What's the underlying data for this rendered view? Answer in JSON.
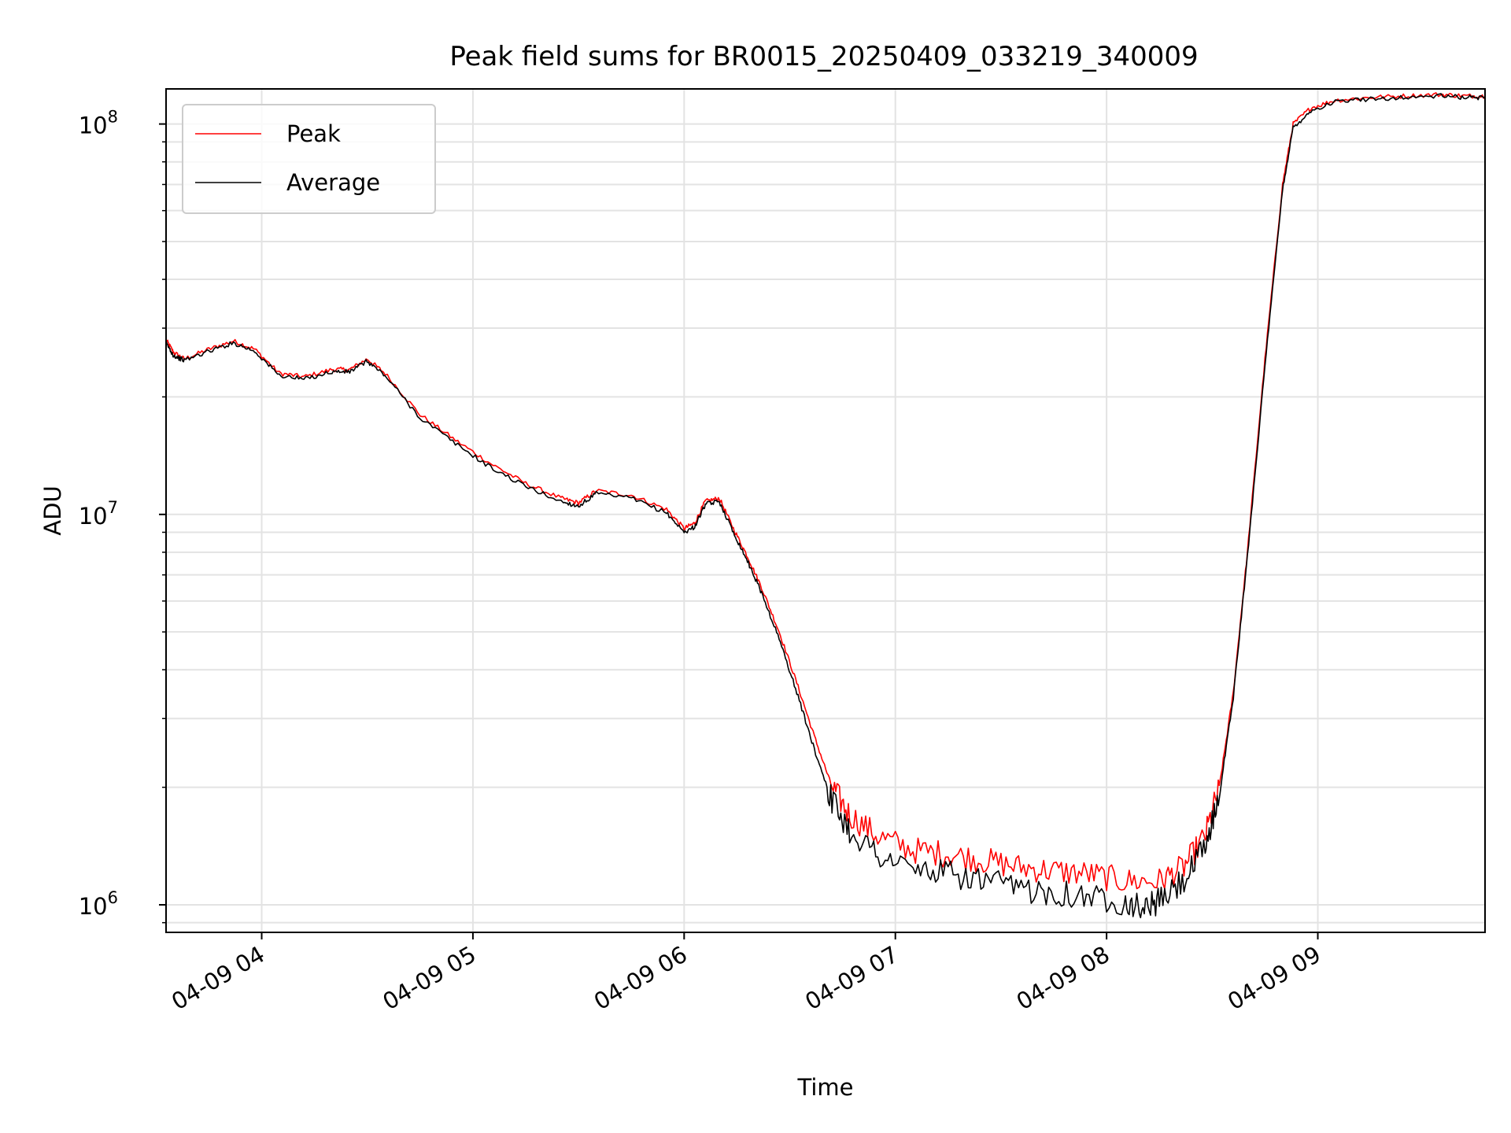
{
  "chart_data": {
    "type": "line",
    "title": "Peak field sums for BR0015_20250409_033219_340009",
    "xlabel": "Time",
    "ylabel": "ADU",
    "y_scale": "log",
    "ylim": [
      850000,
      123000000
    ],
    "xlim": [
      "2025-04-09 03:32:50",
      "2025-04-09 09:47:30"
    ],
    "x_ticks": [
      "2025-04-09 04:00",
      "2025-04-09 05:00",
      "2025-04-09 06:00",
      "2025-04-09 07:00",
      "2025-04-09 08:00",
      "2025-04-09 09:00"
    ],
    "x_tick_labels": [
      "04-09 04",
      "04-09 05",
      "04-09 06",
      "04-09 07",
      "04-09 08",
      "04-09 09"
    ],
    "y_ticks": [
      {
        "base": "10",
        "exp": "6",
        "value": 1000000
      },
      {
        "base": "10",
        "exp": "7",
        "value": 10000000
      },
      {
        "base": "10",
        "exp": "8",
        "value": 100000000
      }
    ],
    "grid": true,
    "legend_position": "upper-left",
    "series": [
      {
        "name": "Peak",
        "color": "#ff0000",
        "points": [
          [
            "2025-04-09 03:32:50",
            28000000
          ],
          [
            "2025-04-09 03:35:00",
            26000000
          ],
          [
            "2025-04-09 03:38:00",
            25000000
          ],
          [
            "2025-04-09 03:45:00",
            26500000
          ],
          [
            "2025-04-09 03:52:00",
            27800000
          ],
          [
            "2025-04-09 03:58:00",
            26500000
          ],
          [
            "2025-04-09 04:05:00",
            23000000
          ],
          [
            "2025-04-09 04:12:00",
            22500000
          ],
          [
            "2025-04-09 04:20:00",
            23500000
          ],
          [
            "2025-04-09 04:25:00",
            23500000
          ],
          [
            "2025-04-09 04:30:00",
            25000000
          ],
          [
            "2025-04-09 04:35:00",
            23000000
          ],
          [
            "2025-04-09 04:45:00",
            18000000
          ],
          [
            "2025-04-09 04:55:00",
            15500000
          ],
          [
            "2025-04-09 05:05:00",
            13500000
          ],
          [
            "2025-04-09 05:15:00",
            12000000
          ],
          [
            "2025-04-09 05:25:00",
            11000000
          ],
          [
            "2025-04-09 05:30:00",
            10700000
          ],
          [
            "2025-04-09 05:35:00",
            11500000
          ],
          [
            "2025-04-09 05:45:00",
            11200000
          ],
          [
            "2025-04-09 05:55:00",
            10300000
          ],
          [
            "2025-04-09 06:00:00",
            9200000
          ],
          [
            "2025-04-09 06:03:00",
            9500000
          ],
          [
            "2025-04-09 06:06:00",
            10800000
          ],
          [
            "2025-04-09 06:10:00",
            11000000
          ],
          [
            "2025-04-09 06:14:00",
            9200000
          ],
          [
            "2025-04-09 06:18:00",
            7800000
          ],
          [
            "2025-04-09 06:22:00",
            6500000
          ],
          [
            "2025-04-09 06:27:00",
            5000000
          ],
          [
            "2025-04-09 06:32:00",
            3700000
          ],
          [
            "2025-04-09 06:37:00",
            2700000
          ],
          [
            "2025-04-09 06:42:00",
            2000000
          ],
          [
            "2025-04-09 06:47:00",
            1700000
          ],
          [
            "2025-04-09 06:55:00",
            1500000
          ],
          [
            "2025-04-09 07:05:00",
            1380000
          ],
          [
            "2025-04-09 07:15:00",
            1350000
          ],
          [
            "2025-04-09 07:25:00",
            1300000
          ],
          [
            "2025-04-09 07:35:00",
            1250000
          ],
          [
            "2025-04-09 07:45:00",
            1220000
          ],
          [
            "2025-04-09 07:55:00",
            1200000
          ],
          [
            "2025-04-09 08:05:00",
            1150000
          ],
          [
            "2025-04-09 08:15:00",
            1150000
          ],
          [
            "2025-04-09 08:22:00",
            1250000
          ],
          [
            "2025-04-09 08:28:00",
            1500000
          ],
          [
            "2025-04-09 08:32:00",
            2000000
          ],
          [
            "2025-04-09 08:36:00",
            3500000
          ],
          [
            "2025-04-09 08:40:00",
            8000000
          ],
          [
            "2025-04-09 08:45:00",
            25000000
          ],
          [
            "2025-04-09 08:50:00",
            70000000
          ],
          [
            "2025-04-09 08:53:00",
            100000000
          ],
          [
            "2025-04-09 08:58:00",
            110000000
          ],
          [
            "2025-04-09 09:05:00",
            115000000
          ],
          [
            "2025-04-09 09:15:00",
            117000000
          ],
          [
            "2025-04-09 09:25:00",
            118000000
          ],
          [
            "2025-04-09 09:35:00",
            119000000
          ],
          [
            "2025-04-09 09:42:00",
            118000000
          ],
          [
            "2025-04-09 09:47:30",
            118000000
          ]
        ]
      },
      {
        "name": "Average",
        "color": "#000000",
        "points": [
          [
            "2025-04-09 03:32:50",
            27500000
          ],
          [
            "2025-04-09 03:35:00",
            25500000
          ],
          [
            "2025-04-09 03:38:00",
            24800000
          ],
          [
            "2025-04-09 03:45:00",
            26200000
          ],
          [
            "2025-04-09 03:52:00",
            27500000
          ],
          [
            "2025-04-09 03:58:00",
            26200000
          ],
          [
            "2025-04-09 04:05:00",
            22700000
          ],
          [
            "2025-04-09 04:12:00",
            22200000
          ],
          [
            "2025-04-09 04:20:00",
            23200000
          ],
          [
            "2025-04-09 04:25:00",
            23200000
          ],
          [
            "2025-04-09 04:30:00",
            24700000
          ],
          [
            "2025-04-09 04:35:00",
            22700000
          ],
          [
            "2025-04-09 04:45:00",
            17700000
          ],
          [
            "2025-04-09 04:55:00",
            15200000
          ],
          [
            "2025-04-09 05:05:00",
            13200000
          ],
          [
            "2025-04-09 05:15:00",
            11800000
          ],
          [
            "2025-04-09 05:25:00",
            10800000
          ],
          [
            "2025-04-09 05:30:00",
            10500000
          ],
          [
            "2025-04-09 05:35:00",
            11300000
          ],
          [
            "2025-04-09 05:45:00",
            11000000
          ],
          [
            "2025-04-09 05:55:00",
            10100000
          ],
          [
            "2025-04-09 06:00:00",
            9000000
          ],
          [
            "2025-04-09 06:03:00",
            9300000
          ],
          [
            "2025-04-09 06:06:00",
            10600000
          ],
          [
            "2025-04-09 06:10:00",
            10800000
          ],
          [
            "2025-04-09 06:14:00",
            9000000
          ],
          [
            "2025-04-09 06:18:00",
            7600000
          ],
          [
            "2025-04-09 06:22:00",
            6300000
          ],
          [
            "2025-04-09 06:27:00",
            4800000
          ],
          [
            "2025-04-09 06:32:00",
            3500000
          ],
          [
            "2025-04-09 06:37:00",
            2500000
          ],
          [
            "2025-04-09 06:42:00",
            1850000
          ],
          [
            "2025-04-09 06:47:00",
            1550000
          ],
          [
            "2025-04-09 06:55:00",
            1350000
          ],
          [
            "2025-04-09 07:05:00",
            1230000
          ],
          [
            "2025-04-09 07:15:00",
            1200000
          ],
          [
            "2025-04-09 07:25:00",
            1150000
          ],
          [
            "2025-04-09 07:35:00",
            1100000
          ],
          [
            "2025-04-09 07:45:00",
            1080000
          ],
          [
            "2025-04-09 07:55:00",
            1050000
          ],
          [
            "2025-04-09 08:05:00",
            1020000
          ],
          [
            "2025-04-09 08:10:00",
            980000
          ],
          [
            "2025-04-09 08:15:00",
            1020000
          ],
          [
            "2025-04-09 08:22:00",
            1150000
          ],
          [
            "2025-04-09 08:28:00",
            1400000
          ],
          [
            "2025-04-09 08:32:00",
            1900000
          ],
          [
            "2025-04-09 08:36:00",
            3400000
          ],
          [
            "2025-04-09 08:40:00",
            7800000
          ],
          [
            "2025-04-09 08:45:00",
            24000000
          ],
          [
            "2025-04-09 08:50:00",
            68000000
          ],
          [
            "2025-04-09 08:53:00",
            98000000
          ],
          [
            "2025-04-09 08:58:00",
            108000000
          ],
          [
            "2025-04-09 09:05:00",
            114000000
          ],
          [
            "2025-04-09 09:15:00",
            116000000
          ],
          [
            "2025-04-09 09:25:00",
            117000000
          ],
          [
            "2025-04-09 09:35:00",
            118000000
          ],
          [
            "2025-04-09 09:42:00",
            117000000
          ],
          [
            "2025-04-09 09:47:30",
            117000000
          ]
        ]
      }
    ]
  }
}
